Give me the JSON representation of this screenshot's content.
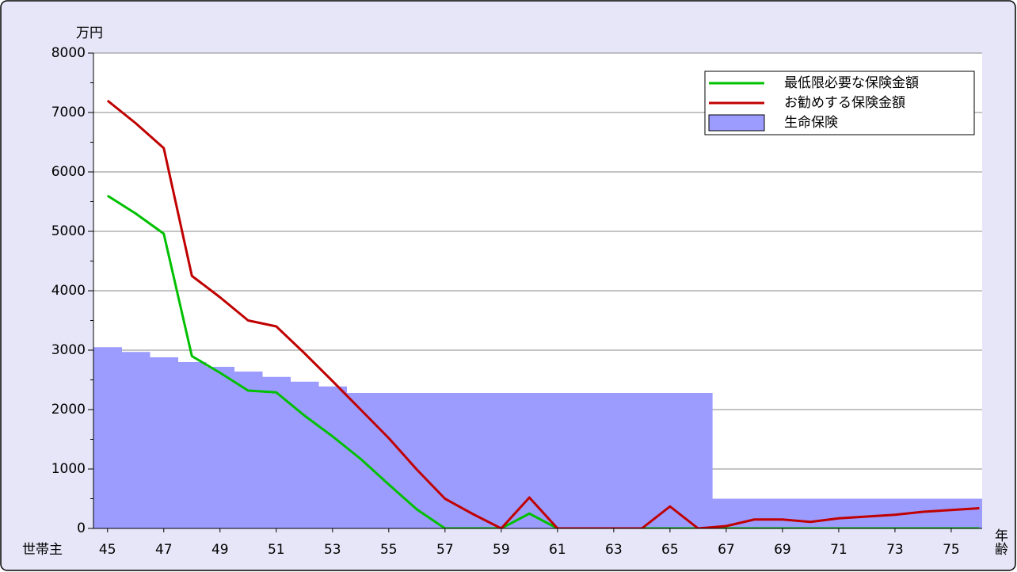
{
  "chart_data": {
    "type": "line",
    "y_label": "万円",
    "x_label": "世帯主",
    "x_unit": "年齢",
    "x": [
      45,
      46,
      47,
      48,
      49,
      50,
      51,
      52,
      53,
      54,
      55,
      56,
      57,
      58,
      59,
      60,
      61,
      62,
      63,
      64,
      65,
      66,
      67,
      68,
      69,
      70,
      71,
      72,
      73,
      74,
      75,
      76
    ],
    "series": [
      {
        "name": "最低限必要な保険金額",
        "type": "line",
        "color": "#00c000",
        "values": [
          5600,
          5300,
          4960,
          2900,
          2620,
          2320,
          2290,
          1900,
          1550,
          1170,
          740,
          320,
          0,
          0,
          0,
          250,
          0,
          0,
          0,
          0,
          0,
          0,
          0,
          0,
          0,
          0,
          0,
          0,
          0,
          0,
          0,
          0
        ]
      },
      {
        "name": "お勧めする保険金額",
        "type": "line",
        "color": "#c00000",
        "values": [
          7200,
          6820,
          6400,
          4250,
          3890,
          3500,
          3400,
          2950,
          2480,
          2000,
          1520,
          990,
          500,
          240,
          0,
          520,
          0,
          0,
          0,
          0,
          370,
          0,
          40,
          150,
          150,
          110,
          170,
          200,
          230,
          280,
          310,
          340
        ]
      },
      {
        "name": "生命保険",
        "type": "bar",
        "color": "#9c9cff",
        "values": [
          3050,
          2970,
          2880,
          2800,
          2720,
          2640,
          2550,
          2470,
          2390,
          2280,
          2280,
          2280,
          2280,
          2280,
          2280,
          2280,
          2280,
          2280,
          2280,
          2280,
          2280,
          2280,
          500,
          500,
          500,
          500,
          500,
          500,
          500,
          500,
          500,
          500
        ]
      }
    ],
    "xlim": [
      44.5,
      76.1
    ],
    "xticks": [
      45,
      47,
      49,
      51,
      53,
      55,
      57,
      59,
      61,
      63,
      65,
      67,
      69,
      71,
      73,
      75
    ],
    "ylim": [
      0,
      8000
    ],
    "yticks": [
      0,
      1000,
      2000,
      3000,
      4000,
      5000,
      6000,
      7000,
      8000
    ],
    "yminorticks": [
      500,
      1500,
      2500,
      3500,
      4500,
      5500,
      6500,
      7500
    ],
    "grid": true,
    "legend": "upper right"
  }
}
